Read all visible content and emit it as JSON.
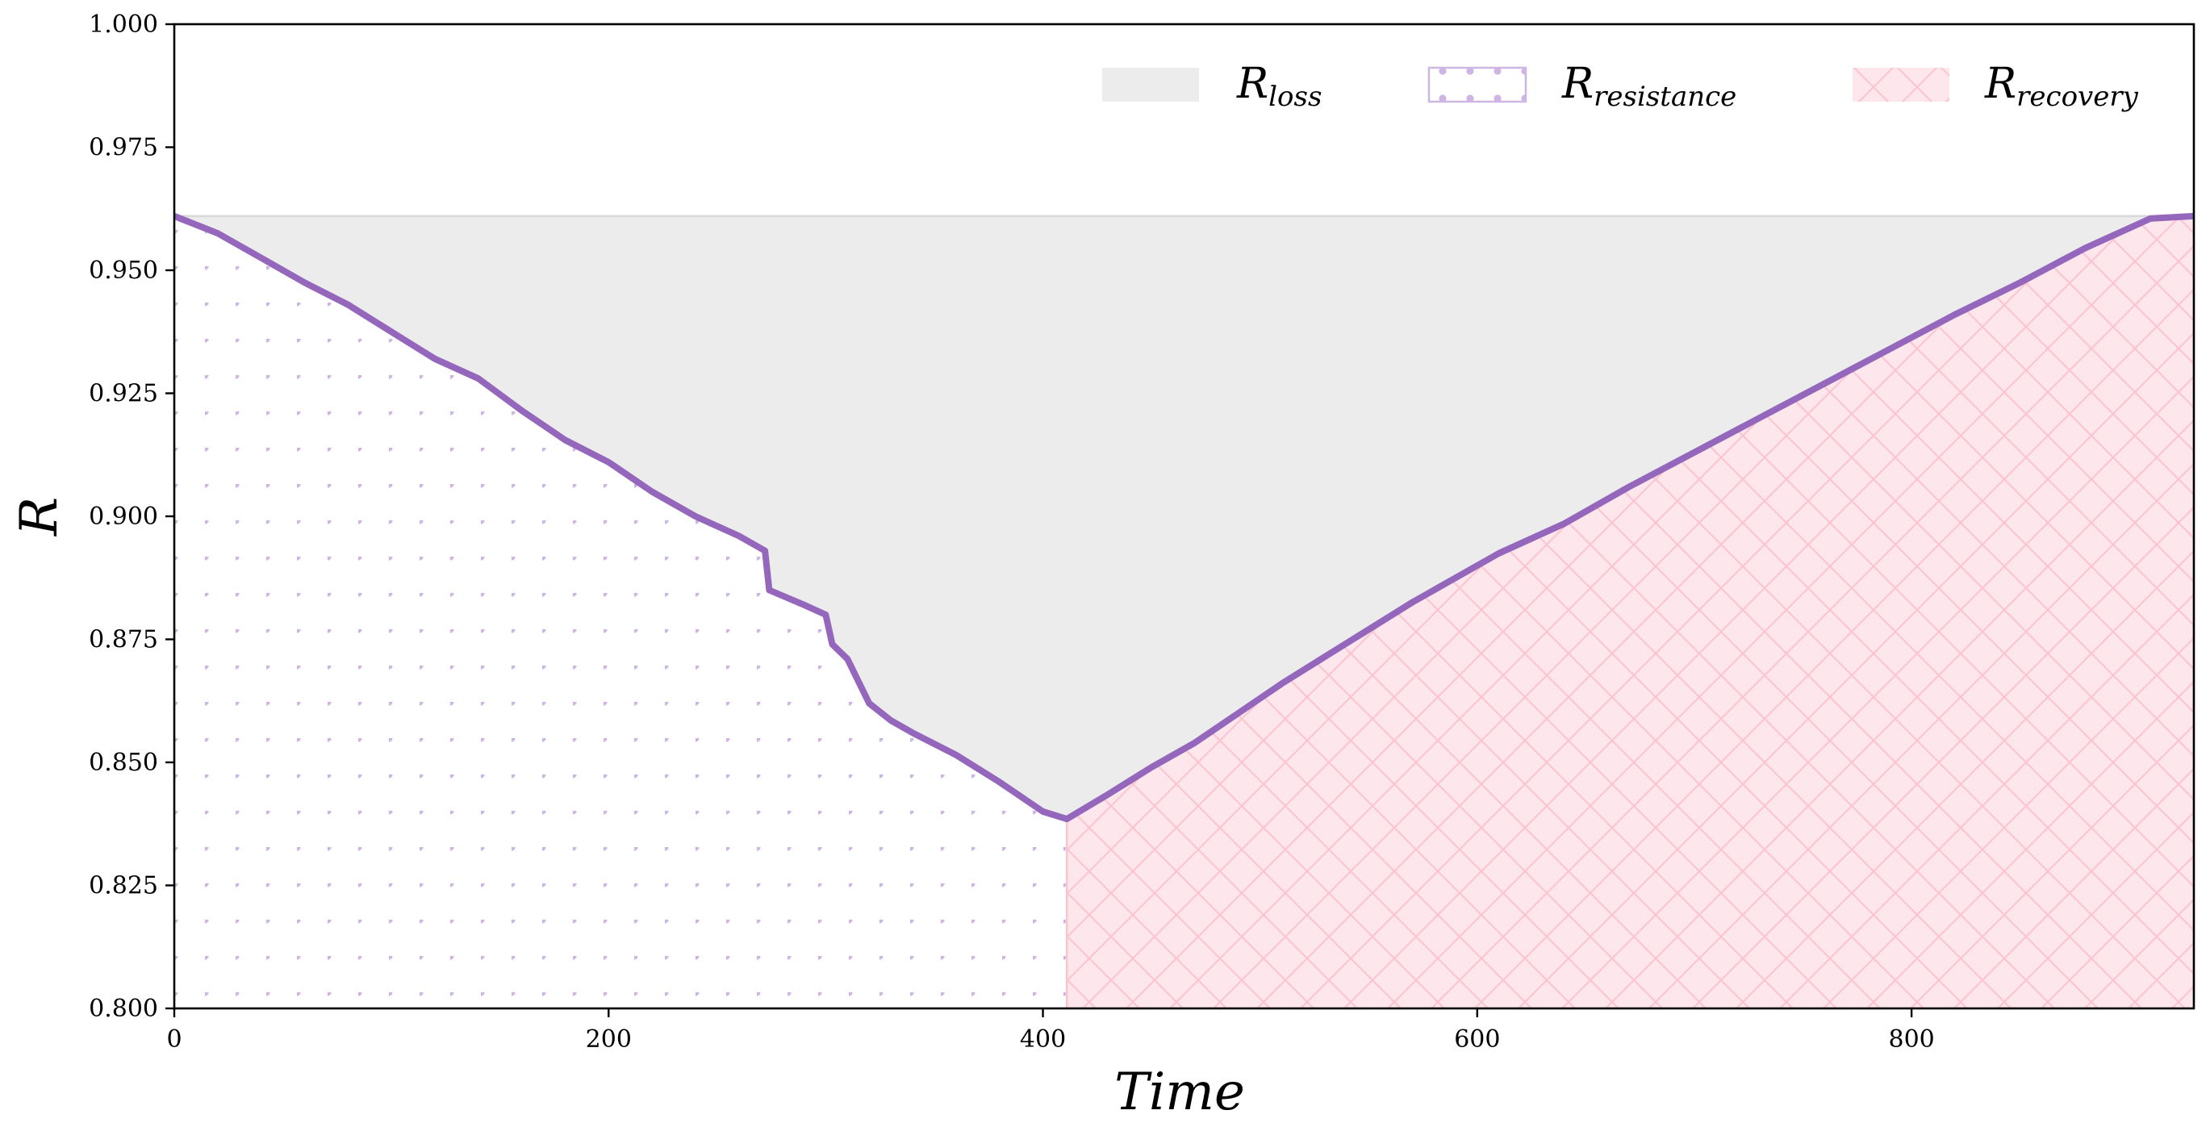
{
  "chart_data": {
    "type": "area",
    "xlabel": "Time",
    "ylabel": "R",
    "xlim": [
      0,
      930
    ],
    "ylim": [
      0.8,
      1.0
    ],
    "x_ticks": [
      "0",
      "200",
      "400",
      "600",
      "800"
    ],
    "y_ticks": [
      "0.800",
      "0.825",
      "0.850",
      "0.875",
      "0.900",
      "0.925",
      "0.950",
      "0.975",
      "1.000"
    ],
    "baseline_R": 0.961,
    "min_time": 411,
    "legend_position": "top-right",
    "legend": [
      {
        "base": "R",
        "sub": "loss"
      },
      {
        "base": "R",
        "sub": "resistance"
      },
      {
        "base": "R",
        "sub": "recovery"
      }
    ],
    "colors": {
      "line": "#9467bd",
      "loss_fill": "#ececec",
      "resistance_dot": "#cfb5e3",
      "recovery_fill": "#fde7ec",
      "recovery_hatch": "#fcc4d2",
      "baseline": "#d8d8d8"
    },
    "series": [
      {
        "name": "R",
        "points": [
          [
            0,
            0.961
          ],
          [
            20,
            0.9575
          ],
          [
            40,
            0.9525
          ],
          [
            60,
            0.9475
          ],
          [
            80,
            0.943
          ],
          [
            100,
            0.9375
          ],
          [
            120,
            0.932
          ],
          [
            140,
            0.928
          ],
          [
            160,
            0.9215
          ],
          [
            180,
            0.9155
          ],
          [
            200,
            0.911
          ],
          [
            220,
            0.905
          ],
          [
            240,
            0.9
          ],
          [
            260,
            0.896
          ],
          [
            272,
            0.893
          ],
          [
            274,
            0.885
          ],
          [
            290,
            0.882
          ],
          [
            300,
            0.88
          ],
          [
            303,
            0.874
          ],
          [
            310,
            0.871
          ],
          [
            320,
            0.862
          ],
          [
            330,
            0.8585
          ],
          [
            340,
            0.856
          ],
          [
            360,
            0.8515
          ],
          [
            380,
            0.846
          ],
          [
            400,
            0.84
          ],
          [
            411,
            0.8385
          ],
          [
            430,
            0.8435
          ],
          [
            450,
            0.849
          ],
          [
            470,
            0.854
          ],
          [
            490,
            0.86
          ],
          [
            510,
            0.866
          ],
          [
            530,
            0.8715
          ],
          [
            550,
            0.877
          ],
          [
            570,
            0.8825
          ],
          [
            590,
            0.8875
          ],
          [
            610,
            0.8925
          ],
          [
            640,
            0.8985
          ],
          [
            670,
            0.906
          ],
          [
            700,
            0.913
          ],
          [
            730,
            0.92
          ],
          [
            760,
            0.927
          ],
          [
            790,
            0.934
          ],
          [
            820,
            0.941
          ],
          [
            850,
            0.9475
          ],
          [
            880,
            0.9545
          ],
          [
            910,
            0.9605
          ],
          [
            930,
            0.961
          ]
        ]
      }
    ]
  }
}
